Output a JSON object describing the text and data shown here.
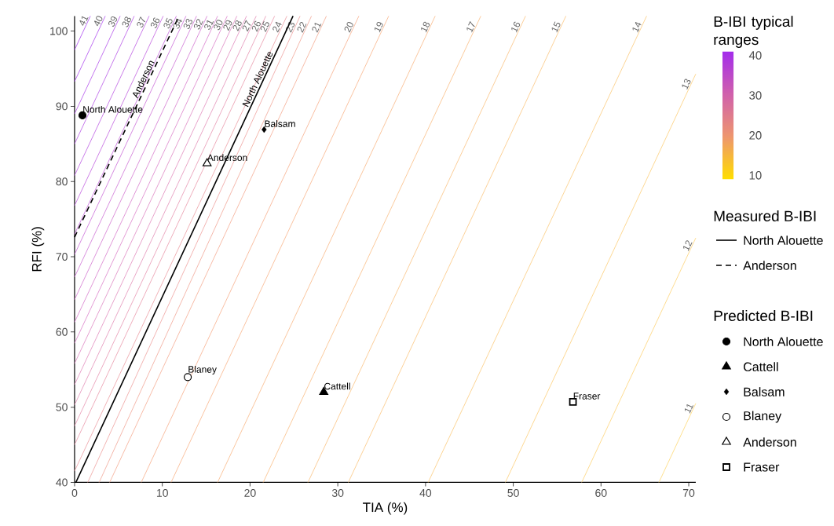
{
  "chart_data": {
    "type": "line",
    "xlabel": "TIA (%)",
    "ylabel": "RFI (%)",
    "clabel": "B-IBI typical ranges",
    "legend_title": [
      "Measured B-IBI",
      "Predicted B-IBI"
    ],
    "legend": "right",
    "xlim": [
      0,
      70.8
    ],
    "ylim": [
      40,
      102
    ],
    "xticks": [
      0,
      10,
      20,
      30,
      40,
      50,
      60,
      70
    ],
    "yticks": [
      40,
      50,
      60,
      70,
      80,
      90,
      100
    ],
    "clim": [
      9,
      41
    ],
    "cticks": [
      10,
      20,
      30,
      40
    ],
    "series": [
      {
        "name": "41",
        "color": "#B45BF3",
        "x": [
          0,
          1.8
        ],
        "values": [
          97.5,
          102
        ]
      },
      {
        "name": "40",
        "color": "#B860F0",
        "x": [
          0,
          3.5
        ],
        "values": [
          93.3,
          102
        ]
      },
      {
        "name": "39",
        "color": "#BC65ED",
        "x": [
          0,
          5.2
        ],
        "values": [
          89.0,
          102
        ]
      },
      {
        "name": "38",
        "color": "#C06AEA",
        "x": [
          0,
          6.8
        ],
        "values": [
          85.0,
          102
        ]
      },
      {
        "name": "37",
        "color": "#C46EE6",
        "x": [
          0,
          8.5
        ],
        "values": [
          80.8,
          102
        ]
      },
      {
        "name": "36",
        "color": "#C873E3",
        "x": [
          0,
          10.1
        ],
        "values": [
          76.8,
          102
        ]
      },
      {
        "name": "35",
        "color": "#CC78E0",
        "x": [
          0,
          11.6
        ],
        "values": [
          73.0,
          102
        ]
      },
      {
        "name": "34",
        "color": "#D07DDD",
        "x": [
          0,
          12.7
        ],
        "values": [
          70.3,
          102
        ]
      },
      {
        "name": "33",
        "color": "#D482DA",
        "x": [
          0,
          13.9
        ],
        "values": [
          67.3,
          102
        ]
      },
      {
        "name": "32",
        "color": "#D886D6",
        "x": [
          0,
          15.1
        ],
        "values": [
          64.3,
          102
        ]
      },
      {
        "name": "31",
        "color": "#DC8BD3",
        "x": [
          0,
          16.3
        ],
        "values": [
          61.3,
          102
        ]
      },
      {
        "name": "30",
        "color": "#E090D0",
        "x": [
          0,
          17.4
        ],
        "values": [
          58.5,
          102
        ]
      },
      {
        "name": "29",
        "color": "#E294CA",
        "x": [
          0,
          18.5
        ],
        "values": [
          55.8,
          102
        ]
      },
      {
        "name": "28",
        "color": "#E598C5",
        "x": [
          0,
          19.6
        ],
        "values": [
          53.0,
          102
        ]
      },
      {
        "name": "27",
        "color": "#E79CBF",
        "x": [
          0,
          20.7
        ],
        "values": [
          50.3,
          102
        ]
      },
      {
        "name": "26",
        "color": "#EAA0BA",
        "x": [
          0,
          21.8
        ],
        "values": [
          47.5,
          102
        ]
      },
      {
        "name": "25",
        "color": "#ECA4B4",
        "x": [
          0,
          22.8
        ],
        "values": [
          45.0,
          102
        ]
      },
      {
        "name": "24",
        "color": "#EEA8AE",
        "x": [
          0,
          24.2
        ],
        "values": [
          41.5,
          102
        ]
      },
      {
        "name": "23",
        "color": "#F1ACA9",
        "x": [
          1.5,
          25.7
        ],
        "values": [
          40,
          102
        ]
      },
      {
        "name": "22",
        "color": "#F3B0A3",
        "x": [
          2.8,
          27.0
        ],
        "values": [
          40,
          102
        ]
      },
      {
        "name": "21",
        "color": "#F6B49E",
        "x": [
          4.0,
          28.7
        ],
        "values": [
          40,
          102
        ]
      },
      {
        "name": "20",
        "color": "#F8B898",
        "x": [
          7.6,
          32.4
        ],
        "values": [
          40,
          102
        ]
      },
      {
        "name": "19",
        "color": "#F9BC96",
        "x": [
          11.0,
          35.8
        ],
        "values": [
          40,
          102
        ]
      },
      {
        "name": "18",
        "color": "#F9C093",
        "x": [
          16.3,
          41.1
        ],
        "values": [
          40,
          102
        ]
      },
      {
        "name": "17",
        "color": "#FAC491",
        "x": [
          21.5,
          46.3
        ],
        "values": [
          40,
          102
        ]
      },
      {
        "name": "16",
        "color": "#FBC88E",
        "x": [
          26.6,
          51.4
        ],
        "values": [
          40,
          102
        ]
      },
      {
        "name": "15",
        "color": "#FCCC8C",
        "x": [
          31.2,
          56.0
        ],
        "values": [
          40,
          102
        ]
      },
      {
        "name": "14",
        "color": "#FCD08A",
        "x": [
          40.3,
          65.2
        ],
        "values": [
          40,
          102
        ]
      },
      {
        "name": "13",
        "color": "#FDD487",
        "x": [
          49.1,
          70.8
        ],
        "values": [
          40,
          94.3
        ]
      },
      {
        "name": "12",
        "color": "#FED885",
        "x": [
          57.8,
          70.8
        ],
        "values": [
          40,
          72.5
        ]
      },
      {
        "name": "11",
        "color": "#FEDC82",
        "x": [
          66.6,
          70.8
        ],
        "values": [
          40,
          50.5
        ]
      },
      {
        "name": "North Alouette",
        "color": "#000000",
        "x": [
          0.15,
          24.9
        ],
        "values": [
          40,
          102
        ],
        "line_style": "solid"
      },
      {
        "name": "Anderson",
        "color": "#000000",
        "x": [
          0,
          11.9
        ],
        "values": [
          72.6,
          102
        ],
        "line_style": "dashed"
      },
      {
        "name": "North Alouette",
        "type": "scatter",
        "color": "#000000",
        "marker": "circle",
        "x": [
          0.9
        ],
        "values": [
          88.8
        ]
      },
      {
        "name": "Cattell",
        "type": "scatter",
        "color": "#000000",
        "marker": "triangle",
        "x": [
          28.4
        ],
        "values": [
          52.0
        ]
      },
      {
        "name": "Balsam",
        "type": "scatter",
        "color": "#000000",
        "marker": "diamond",
        "x": [
          21.6
        ],
        "values": [
          86.9
        ]
      },
      {
        "name": "Blaney",
        "type": "scatter",
        "color": "#ffffff",
        "marker": "circle",
        "x": [
          12.9
        ],
        "values": [
          54.0
        ]
      },
      {
        "name": "Anderson",
        "type": "scatter",
        "color": "#ffffff",
        "marker": "triangle",
        "x": [
          15.1
        ],
        "values": [
          82.4
        ]
      },
      {
        "name": "Fraser",
        "type": "scatter",
        "color": "#000000",
        "marker": "square",
        "x": [
          56.8
        ],
        "values": [
          50.7
        ]
      }
    ]
  }
}
